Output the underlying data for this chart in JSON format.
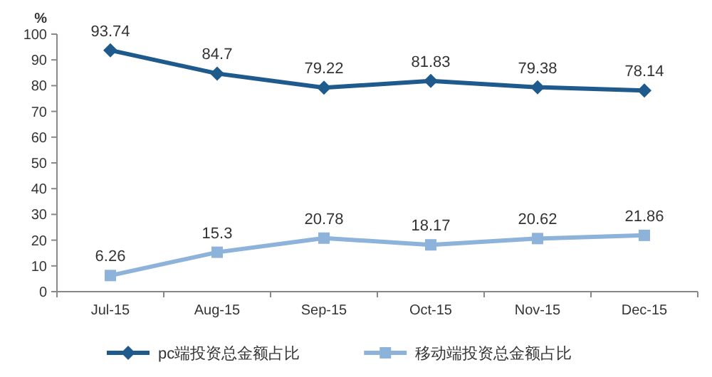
{
  "chart_data": {
    "type": "line",
    "ylabel": "%",
    "categories": [
      "Jul-15",
      "Aug-15",
      "Sep-15",
      "Oct-15",
      "Nov-15",
      "Dec-15"
    ],
    "series": [
      {
        "name": "pc端投资总金额占比",
        "color": "#1f5a8c",
        "marker": "diamond",
        "values": [
          93.74,
          84.7,
          79.22,
          81.83,
          79.38,
          78.14
        ]
      },
      {
        "name": "移动端投资总金额占比",
        "color": "#8db3da",
        "marker": "square",
        "values": [
          6.26,
          15.3,
          20.78,
          18.17,
          20.62,
          21.86
        ]
      }
    ],
    "ylim": [
      0,
      100
    ],
    "yticks": [
      0,
      10,
      20,
      30,
      40,
      50,
      60,
      70,
      80,
      90,
      100
    ],
    "data_labels": true,
    "legend": "bottom",
    "line_style": "solid"
  }
}
